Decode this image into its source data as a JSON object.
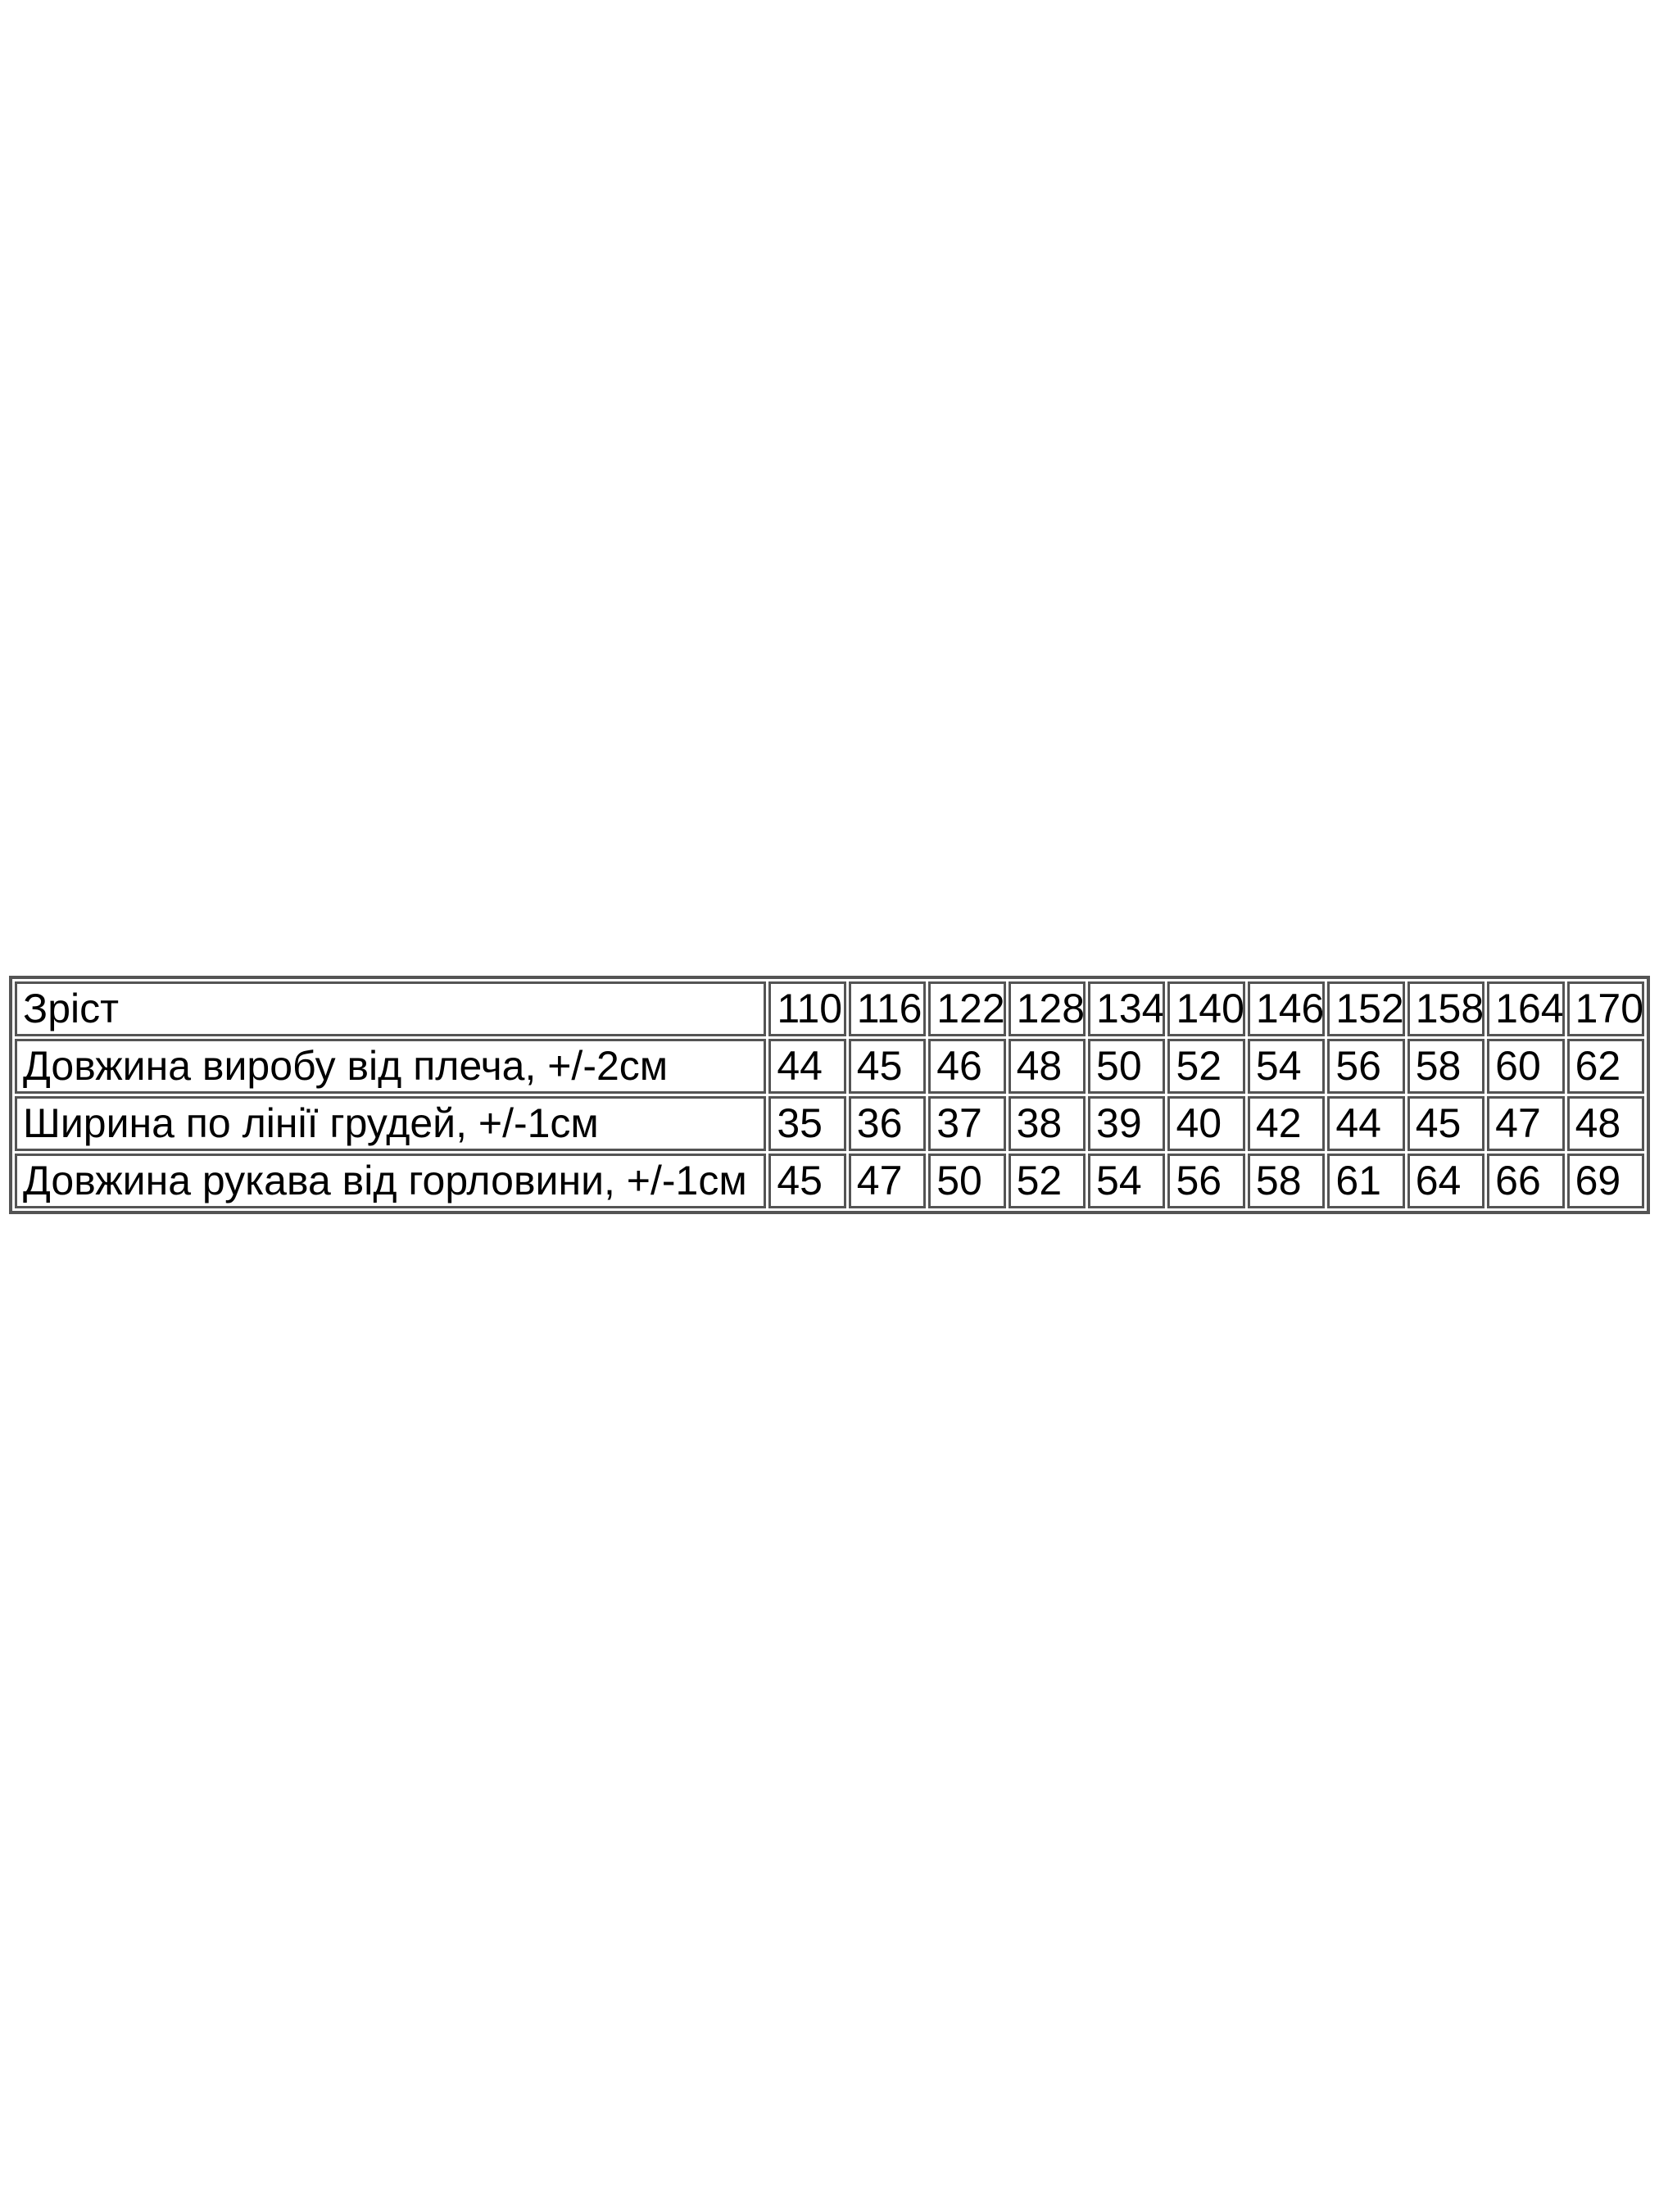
{
  "page": {
    "background": "#ffffff"
  },
  "size_table": {
    "border_color": "#545454",
    "text_color": "#000000",
    "header_row": {
      "label": "Зріст",
      "values": [
        "110",
        "116",
        "122",
        "128",
        "134",
        "140",
        "146",
        "152",
        "158",
        "164",
        "170"
      ]
    },
    "rows": [
      {
        "label": "Довжина виробу від плеча, +/-2см",
        "values": [
          "44",
          "45",
          "46",
          "48",
          "50",
          "52",
          "54",
          "56",
          "58",
          "60",
          "62"
        ]
      },
      {
        "label": "Ширина по лінії грудей, +/-1см",
        "values": [
          "35",
          "36",
          "37",
          "38",
          "39",
          "40",
          "42",
          "44",
          "45",
          "47",
          "48"
        ]
      },
      {
        "label": "Довжина рукава від горловини, +/-1см",
        "values": [
          "45",
          "47",
          "50",
          "52",
          "54",
          "56",
          "58",
          "61",
          "64",
          "66",
          "69"
        ]
      }
    ]
  }
}
